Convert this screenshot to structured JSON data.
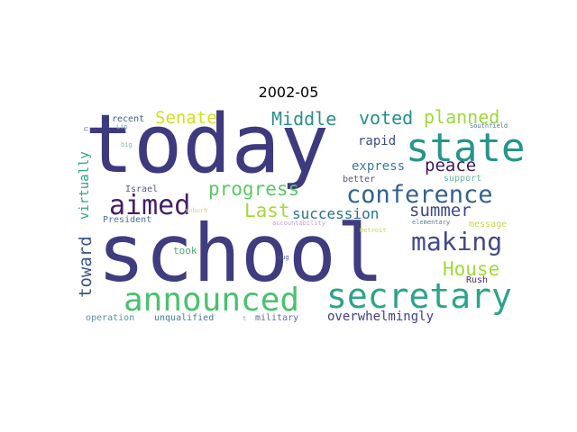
{
  "title": "2002-05",
  "words": [
    {
      "text": "today",
      "color": "#3e3a7e"
    },
    {
      "text": "school",
      "color": "#3f3c80"
    },
    {
      "text": "state",
      "color": "#26958a"
    },
    {
      "text": "secretary",
      "color": "#2da38a"
    },
    {
      "text": "announced",
      "color": "#4ac16d"
    },
    {
      "text": "conference",
      "color": "#33628d"
    },
    {
      "text": "making",
      "color": "#424a86"
    },
    {
      "text": "aimed",
      "color": "#461c68"
    },
    {
      "text": "progress",
      "color": "#5ac864"
    },
    {
      "text": "Last",
      "color": "#a7d83b"
    },
    {
      "text": "succession",
      "color": "#2d718e"
    },
    {
      "text": "summer",
      "color": "#3e4a89"
    },
    {
      "text": "peace",
      "color": "#3d1a5c"
    },
    {
      "text": "House",
      "color": "#a0da39"
    },
    {
      "text": "voted",
      "color": "#21918c"
    },
    {
      "text": "planned",
      "color": "#9bd93c"
    },
    {
      "text": "Middle",
      "color": "#2a8f8a"
    },
    {
      "text": "Senate",
      "color": "#d0e11c"
    },
    {
      "text": "rapid",
      "color": "#3c4f8a"
    },
    {
      "text": "express",
      "color": "#3b7b8e"
    },
    {
      "text": "toward",
      "color": "#3b528b"
    },
    {
      "text": "virtually",
      "color": "#2ba883"
    },
    {
      "text": "overwhelmingly",
      "color": "#433e85"
    },
    {
      "text": "Israel",
      "color": "#4f5e8a"
    },
    {
      "text": "President",
      "color": "#5070a0"
    },
    {
      "text": "took",
      "color": "#4aae6d"
    },
    {
      "text": "operation",
      "color": "#5a8fa0"
    },
    {
      "text": "unqualified",
      "color": "#427a96"
    },
    {
      "text": "military",
      "color": "#5e6c98"
    },
    {
      "text": "Rush",
      "color": "#4b2a6e"
    },
    {
      "text": "message",
      "color": "#c8d54a"
    },
    {
      "text": "better",
      "color": "#55566e"
    },
    {
      "text": "support",
      "color": "#66b8a0"
    },
    {
      "text": "recent",
      "color": "#3e5e8a"
    },
    {
      "text": "Lip",
      "color": "#7aa0b0"
    },
    {
      "text": "big",
      "color": "#88b8a0"
    },
    {
      "text": "Southfield",
      "color": "#4e7a98"
    },
    {
      "text": "elementary",
      "color": "#5b7ea0"
    },
    {
      "text": "suburb",
      "color": "#d8d870"
    },
    {
      "text": "accountability",
      "color": "#c8a0c8"
    },
    {
      "text": "Detroit",
      "color": "#c0d850"
    },
    {
      "text": "Hug",
      "color": "#555a8c"
    },
    {
      "text": "t",
      "color": "#a0a0a0"
    },
    {
      "text": "n",
      "color": "#7a90b0"
    }
  ]
}
